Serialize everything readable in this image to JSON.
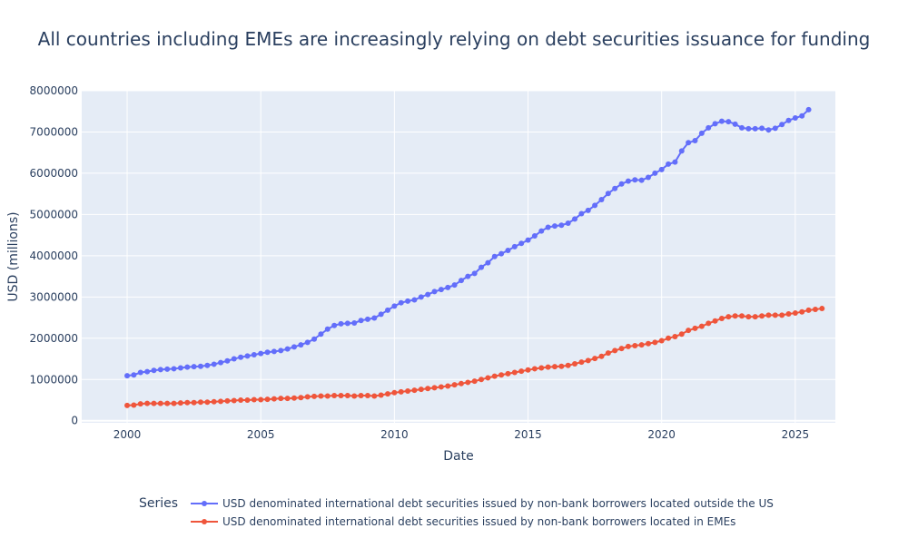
{
  "chart_data": {
    "type": "line",
    "title": "All countries including EMEs are increasingly relying on debt securities issuance for funding",
    "xlabel": "Date",
    "ylabel": "USD (millions)",
    "xlim": [
      1998.3,
      2026.5
    ],
    "ylim": [
      -50000,
      8000000
    ],
    "x_ticks": [
      2000,
      2005,
      2010,
      2015,
      2020,
      2025
    ],
    "x_tick_labels": [
      "2000",
      "2005",
      "2010",
      "2015",
      "2020",
      "2025"
    ],
    "y_ticks": [
      0,
      1000000,
      2000000,
      3000000,
      4000000,
      5000000,
      6000000,
      7000000,
      8000000
    ],
    "y_tick_labels": [
      "0",
      "1000000",
      "2000000",
      "3000000",
      "4000000",
      "5000000",
      "6000000",
      "7000000",
      "8000000"
    ],
    "grid": true,
    "legend": {
      "title": "Series",
      "placement": "bottom-center"
    },
    "x_start": 2000,
    "x_step": 0.25,
    "series": [
      {
        "name": "USD denominated international debt securities issued by non-bank borrowers located outside the US",
        "color": "#636efa",
        "values": [
          1090000,
          1110000,
          1170000,
          1190000,
          1220000,
          1240000,
          1250000,
          1260000,
          1280000,
          1300000,
          1310000,
          1320000,
          1340000,
          1370000,
          1410000,
          1450000,
          1500000,
          1540000,
          1570000,
          1600000,
          1630000,
          1660000,
          1680000,
          1700000,
          1740000,
          1790000,
          1840000,
          1900000,
          1980000,
          2100000,
          2220000,
          2310000,
          2350000,
          2360000,
          2370000,
          2430000,
          2460000,
          2490000,
          2580000,
          2680000,
          2780000,
          2860000,
          2900000,
          2930000,
          3000000,
          3060000,
          3130000,
          3180000,
          3230000,
          3290000,
          3400000,
          3500000,
          3570000,
          3720000,
          3830000,
          3980000,
          4050000,
          4130000,
          4220000,
          4300000,
          4380000,
          4480000,
          4600000,
          4690000,
          4720000,
          4740000,
          4790000,
          4890000,
          5020000,
          5100000,
          5220000,
          5360000,
          5510000,
          5630000,
          5740000,
          5810000,
          5840000,
          5830000,
          5900000,
          6000000,
          6090000,
          6220000,
          6270000,
          6540000,
          6740000,
          6790000,
          6970000,
          7100000,
          7200000,
          7260000,
          7250000,
          7190000,
          7100000,
          7080000,
          7080000,
          7090000,
          7050000,
          7090000,
          7180000,
          7280000,
          7340000,
          7390000,
          7540000
        ]
      },
      {
        "name": "USD denominated international debt securities issued by non-bank borrowers located in EMEs",
        "color": "#ef553b",
        "values": [
          370000,
          380000,
          410000,
          420000,
          420000,
          420000,
          420000,
          420000,
          430000,
          440000,
          440000,
          450000,
          450000,
          460000,
          470000,
          480000,
          490000,
          500000,
          500000,
          510000,
          510000,
          520000,
          530000,
          540000,
          540000,
          550000,
          560000,
          580000,
          590000,
          600000,
          600000,
          610000,
          610000,
          610000,
          600000,
          610000,
          610000,
          600000,
          620000,
          650000,
          680000,
          700000,
          720000,
          740000,
          760000,
          780000,
          800000,
          820000,
          840000,
          870000,
          900000,
          930000,
          960000,
          1000000,
          1040000,
          1080000,
          1110000,
          1140000,
          1170000,
          1200000,
          1230000,
          1260000,
          1280000,
          1300000,
          1310000,
          1320000,
          1340000,
          1380000,
          1420000,
          1460000,
          1510000,
          1560000,
          1640000,
          1700000,
          1750000,
          1800000,
          1820000,
          1840000,
          1870000,
          1900000,
          1940000,
          2000000,
          2040000,
          2100000,
          2190000,
          2240000,
          2290000,
          2360000,
          2420000,
          2480000,
          2520000,
          2540000,
          2540000,
          2520000,
          2520000,
          2540000,
          2560000,
          2560000,
          2560000,
          2590000,
          2610000,
          2640000,
          2680000,
          2700000,
          2720000
        ]
      }
    ]
  }
}
